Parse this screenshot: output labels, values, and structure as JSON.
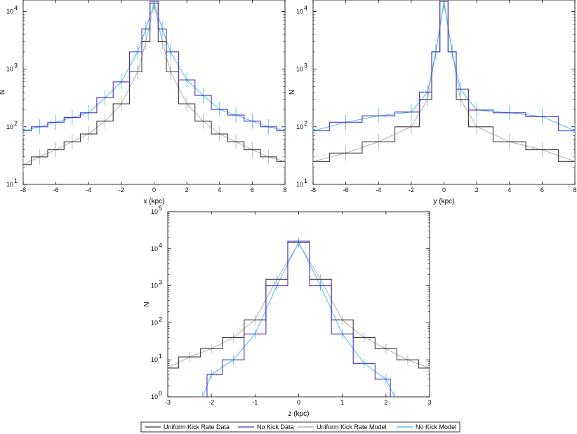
{
  "chart_data": [
    {
      "type": "line",
      "id": "x",
      "xlabel": "x (kpc)",
      "ylabel": "N",
      "xlim": [
        -8,
        8
      ],
      "ylim_log10": [
        1,
        4.2
      ],
      "xticks": [
        -8,
        -6,
        -4,
        -2,
        0,
        2,
        4,
        6,
        8
      ],
      "yticks": [
        {
          "base": "10",
          "exp": "1",
          "value": 10
        },
        {
          "base": "10",
          "exp": "2",
          "value": 100
        },
        {
          "base": "10",
          "exp": "3",
          "value": 1000
        },
        {
          "base": "10",
          "exp": "4",
          "value": 10000
        }
      ],
      "series": [
        {
          "name": "Uniform Kick Rate Data",
          "color": "#3a3a3a",
          "style": "step",
          "x": [
            -8,
            -7,
            -6,
            -5,
            -4,
            -3,
            -2,
            -1,
            -0.5,
            0,
            0.5,
            1,
            2,
            3,
            4,
            5,
            6,
            7,
            8
          ],
          "y": [
            22,
            30,
            40,
            55,
            75,
            125,
            250,
            900,
            3000,
            14000,
            3000,
            900,
            250,
            125,
            75,
            55,
            40,
            30,
            25
          ]
        },
        {
          "name": "No Kick Data",
          "color": "#4b30c8",
          "style": "step",
          "x": [
            -8,
            -7,
            -6,
            -5,
            -4,
            -3,
            -2,
            -1,
            -0.5,
            0,
            0.5,
            1,
            2,
            3,
            4,
            5,
            6,
            7,
            8
          ],
          "y": [
            85,
            100,
            120,
            145,
            175,
            320,
            600,
            2000,
            5000,
            15000,
            5000,
            2000,
            650,
            350,
            200,
            160,
            125,
            100,
            85
          ]
        },
        {
          "name": "Uniform Kick Rate Model",
          "color": "#a8a8a8",
          "style": "errorbar",
          "x": [
            -8,
            -7,
            -6,
            -5,
            -4,
            -3,
            -2,
            -1,
            -0.5,
            0,
            0.5,
            1,
            2,
            3,
            4,
            5,
            6,
            7,
            8
          ],
          "y": [
            22,
            30,
            40,
            55,
            75,
            125,
            250,
            900,
            3000,
            13000,
            3000,
            900,
            250,
            125,
            75,
            55,
            40,
            30,
            25
          ]
        },
        {
          "name": "No Kick Model",
          "color": "#37b6ee",
          "style": "errorbar",
          "x": [
            -8,
            -7,
            -6,
            -5,
            -4,
            -3,
            -2,
            -1,
            -0.5,
            0,
            0.5,
            1,
            2,
            3,
            4,
            5,
            6,
            7,
            8
          ],
          "y": [
            85,
            100,
            120,
            145,
            175,
            320,
            600,
            2000,
            5000,
            14000,
            5000,
            2000,
            650,
            350,
            200,
            160,
            125,
            100,
            85
          ]
        }
      ]
    },
    {
      "type": "line",
      "id": "y",
      "xlabel": "y (kpc)",
      "ylabel": "N",
      "xlim": [
        -8,
        8
      ],
      "ylim_log10": [
        1,
        4.2
      ],
      "xticks": [
        -8,
        -6,
        -4,
        -2,
        0,
        2,
        4,
        6,
        8
      ],
      "yticks": [
        {
          "base": "10",
          "exp": "1",
          "value": 10
        },
        {
          "base": "10",
          "exp": "2",
          "value": 100
        },
        {
          "base": "10",
          "exp": "3",
          "value": 1000
        },
        {
          "base": "10",
          "exp": "4",
          "value": 10000
        }
      ],
      "series": [
        {
          "name": "Uniform Kick Rate Data",
          "color": "#3a3a3a",
          "style": "step",
          "x": [
            -8,
            -6,
            -4,
            -2,
            -1,
            -0.5,
            0,
            0.5,
            1,
            2,
            4,
            6,
            8
          ],
          "y": [
            25,
            35,
            55,
            100,
            300,
            2000,
            15000,
            2000,
            300,
            100,
            55,
            40,
            25
          ]
        },
        {
          "name": "No Kick Data",
          "color": "#4b30c8",
          "style": "step",
          "x": [
            -8,
            -6,
            -4,
            -2,
            -1,
            -0.5,
            0,
            0.5,
            1,
            2,
            4,
            6,
            8
          ],
          "y": [
            85,
            120,
            155,
            180,
            400,
            2000,
            16000,
            2000,
            450,
            195,
            175,
            150,
            85
          ]
        },
        {
          "name": "Uniform Kick Rate Model",
          "color": "#a8a8a8",
          "style": "errorbar",
          "x": [
            -8,
            -6,
            -4,
            -2,
            -1,
            -0.5,
            0,
            0.5,
            1,
            2,
            4,
            6,
            8
          ],
          "y": [
            25,
            35,
            55,
            100,
            300,
            2000,
            14000,
            2000,
            300,
            100,
            55,
            40,
            25
          ]
        },
        {
          "name": "No Kick Model",
          "color": "#37b6ee",
          "style": "errorbar",
          "x": [
            -8,
            -6,
            -4,
            -2,
            -1,
            -0.5,
            0,
            0.5,
            1,
            2,
            4,
            6,
            8
          ],
          "y": [
            85,
            120,
            155,
            180,
            400,
            2000,
            15000,
            2000,
            450,
            195,
            175,
            150,
            85
          ]
        }
      ]
    },
    {
      "type": "line",
      "id": "z",
      "xlabel": "z (kpc)",
      "ylabel": "N",
      "xlim": [
        -3,
        3
      ],
      "ylim_log10": [
        0,
        5
      ],
      "xticks": [
        -3,
        -2,
        -1,
        0,
        1,
        2,
        3
      ],
      "yticks": [
        {
          "base": "10",
          "exp": "0",
          "value": 1
        },
        {
          "base": "10",
          "exp": "1",
          "value": 10
        },
        {
          "base": "10",
          "exp": "2",
          "value": 100
        },
        {
          "base": "10",
          "exp": "3",
          "value": 1000
        },
        {
          "base": "10",
          "exp": "4",
          "value": 10000
        },
        {
          "base": "10",
          "exp": "5",
          "value": 100000
        }
      ],
      "series": [
        {
          "name": "Uniform Kick Rate Data",
          "color": "#3a3a3a",
          "style": "step",
          "x": [
            -3,
            -2.5,
            -2,
            -1.5,
            -1,
            -0.5,
            0,
            0.5,
            1,
            1.5,
            2,
            2.5,
            3
          ],
          "y": [
            6,
            12,
            20,
            40,
            120,
            1500,
            15000,
            1500,
            120,
            40,
            20,
            10,
            6
          ]
        },
        {
          "name": "No Kick Data",
          "color": "#4b30c8",
          "style": "step",
          "x": [
            -2.2,
            -2,
            -1.5,
            -1,
            -0.5,
            0,
            0.5,
            1,
            1.5,
            2,
            2.2
          ],
          "y": [
            1,
            4,
            10,
            50,
            1000,
            16000,
            1000,
            50,
            8,
            3,
            1
          ]
        },
        {
          "name": "Uniform Kick Rate Model",
          "color": "#a8a8a8",
          "style": "errorbar",
          "x": [
            -3,
            -2.5,
            -2,
            -1.5,
            -1,
            -0.5,
            0,
            0.5,
            1,
            1.5,
            2,
            2.5,
            3
          ],
          "y": [
            6,
            12,
            20,
            40,
            120,
            1500,
            14000,
            1500,
            120,
            40,
            20,
            10,
            6
          ]
        },
        {
          "name": "No Kick Model",
          "color": "#37b6ee",
          "style": "errorbar",
          "x": [
            -2.2,
            -2,
            -1.5,
            -1,
            -0.5,
            0,
            0.5,
            1,
            1.5,
            2,
            2.2
          ],
          "y": [
            1,
            4,
            10,
            50,
            1000,
            15000,
            1000,
            50,
            8,
            3,
            1
          ]
        }
      ]
    }
  ],
  "legend": {
    "placement": "bottom-center",
    "entries": [
      {
        "label": "Uniform Kick Rate Data",
        "color": "#3a3a3a"
      },
      {
        "label": "No Kick Data",
        "color": "#4b30c8"
      },
      {
        "label": "Uniform Kick Rate Model",
        "color": "#a8a8a8"
      },
      {
        "label": "No Kick Model",
        "color": "#37b6ee"
      }
    ]
  }
}
